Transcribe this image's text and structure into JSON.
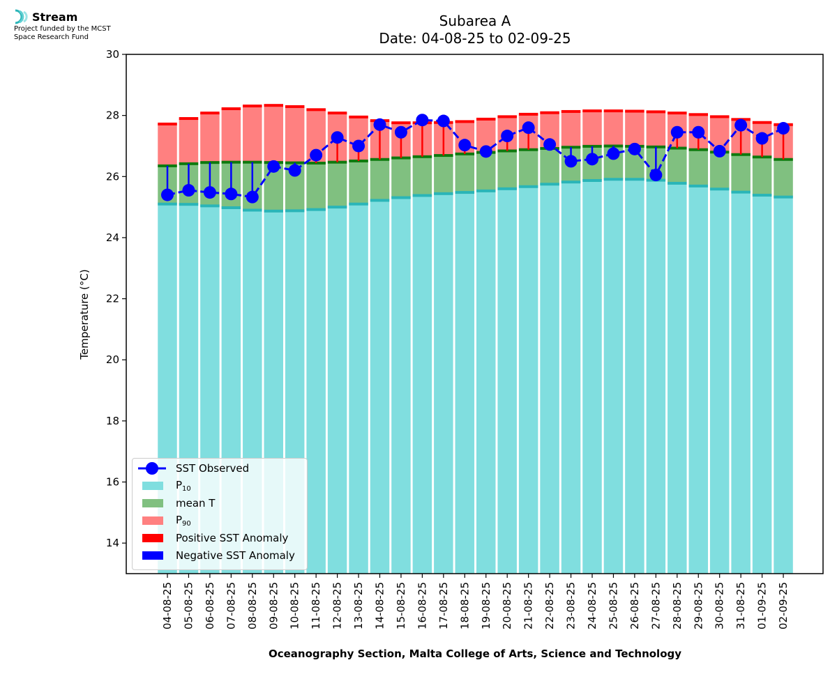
{
  "logo": {
    "name": "Stream",
    "line1": "Project funded by the MCST",
    "line2": "Space Research Fund"
  },
  "chart_data": {
    "type": "bar",
    "title": "Subarea A",
    "subtitle": "Date: 04-08-25 to 02-09-25",
    "xlabel": "Oceanography Section, Malta College of Arts, Science and Technology",
    "ylabel": "Temperature (°C)",
    "ylim": [
      13,
      30
    ],
    "yticks": [
      14,
      16,
      18,
      20,
      22,
      24,
      26,
      28,
      30
    ],
    "grid": false,
    "legend_position": "lower-left",
    "categories": [
      "04-08-25",
      "05-08-25",
      "06-08-25",
      "07-08-25",
      "08-08-25",
      "09-08-25",
      "10-08-25",
      "11-08-25",
      "12-08-25",
      "13-08-25",
      "14-08-25",
      "15-08-25",
      "16-08-25",
      "17-08-25",
      "18-08-25",
      "19-08-25",
      "20-08-25",
      "21-08-25",
      "22-08-25",
      "23-08-25",
      "24-08-25",
      "25-08-25",
      "26-08-25",
      "27-08-25",
      "28-08-25",
      "29-08-25",
      "30-08-25",
      "31-08-25",
      "01-09-25",
      "02-09-25"
    ],
    "series": [
      {
        "name": "P10",
        "label_main": "P",
        "label_sub": "10",
        "color": "#80dedf",
        "edge": "#2ab5b8",
        "values": [
          25.1,
          25.09,
          25.04,
          24.98,
          24.9,
          24.87,
          24.88,
          24.92,
          25.0,
          25.1,
          25.22,
          25.31,
          25.38,
          25.44,
          25.48,
          25.53,
          25.6,
          25.67,
          25.75,
          25.82,
          25.87,
          25.91,
          25.91,
          25.88,
          25.78,
          25.69,
          25.59,
          25.49,
          25.39,
          25.33
        ]
      },
      {
        "name": "mean T",
        "color": "#80c080",
        "edge": "#0e7a0e",
        "values": [
          26.35,
          26.42,
          26.46,
          26.47,
          26.47,
          26.46,
          26.45,
          26.44,
          26.47,
          26.51,
          26.56,
          26.61,
          26.65,
          26.69,
          26.74,
          26.79,
          26.84,
          26.88,
          26.92,
          26.96,
          26.99,
          27.0,
          26.99,
          26.97,
          26.93,
          26.88,
          26.8,
          26.72,
          26.64,
          26.56
        ]
      },
      {
        "name": "P90",
        "label_main": "P",
        "label_sub": "90",
        "color": "#ff8080",
        "edge": "#ff0000",
        "values": [
          27.72,
          27.9,
          28.08,
          28.22,
          28.31,
          28.33,
          28.29,
          28.19,
          28.08,
          27.95,
          27.83,
          27.76,
          27.76,
          27.77,
          27.8,
          27.88,
          27.96,
          28.04,
          28.09,
          28.13,
          28.15,
          28.15,
          28.14,
          28.12,
          28.08,
          28.03,
          27.96,
          27.87,
          27.77,
          27.7
        ]
      },
      {
        "name": "SST Observed",
        "color": "#0000ff",
        "values": [
          25.4,
          25.55,
          25.48,
          25.43,
          25.33,
          26.33,
          26.2,
          26.7,
          27.28,
          27.0,
          27.7,
          27.45,
          27.85,
          27.82,
          27.03,
          26.82,
          27.33,
          27.6,
          27.05,
          26.5,
          26.57,
          26.75,
          26.9,
          26.05,
          27.45,
          27.45,
          26.83,
          27.68,
          27.25,
          27.58
        ]
      }
    ],
    "legend": [
      {
        "name": "SST Observed",
        "kind": "line-marker",
        "color": "#0000ff"
      },
      {
        "name": "P10",
        "label_main": "P",
        "label_sub": "10",
        "kind": "patch",
        "color": "#80dedf"
      },
      {
        "name": "mean T",
        "kind": "patch",
        "color": "#80c080"
      },
      {
        "name": "P90",
        "label_main": "P",
        "label_sub": "90",
        "kind": "patch",
        "color": "#ff8080"
      },
      {
        "name": "Positive SST Anomaly",
        "kind": "patch",
        "color": "#ff0000"
      },
      {
        "name": "Negative SST Anomaly",
        "kind": "patch",
        "color": "#0000ff"
      }
    ]
  }
}
